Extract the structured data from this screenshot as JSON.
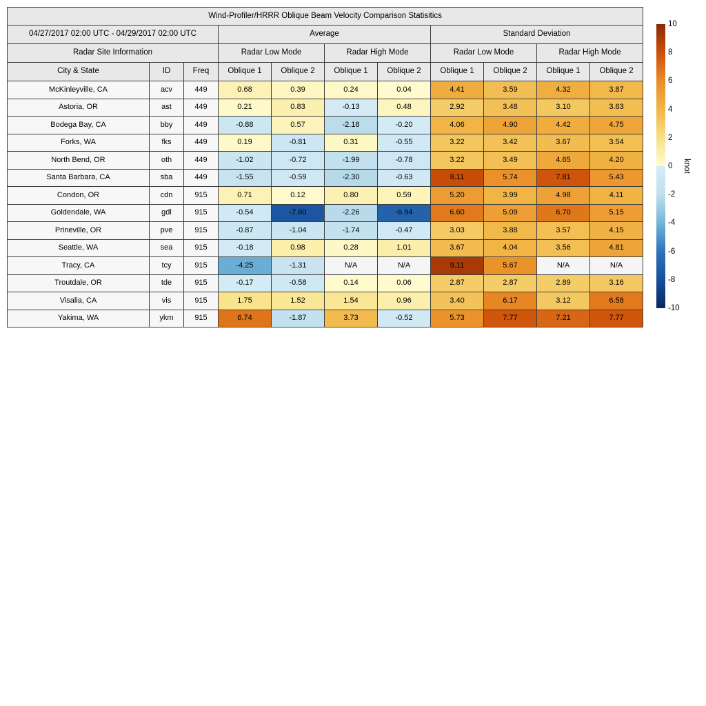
{
  "chart_data": {
    "type": "heatmap",
    "title": "Wind-Profiler/HRRR Oblique Beam Velocity Comparison Statisitics",
    "period": "04/27/2017 02:00 UTC - 04/29/2017 02:00 UTC",
    "site_info_header": "Radar Site Information",
    "group_headers": [
      "Average",
      "Standard Deviation"
    ],
    "mode_headers": [
      "Radar Low Mode",
      "Radar High Mode",
      "Radar Low Mode",
      "Radar High Mode"
    ],
    "columns": [
      "City & State",
      "ID",
      "Freq",
      "Oblique 1",
      "Oblique 2",
      "Oblique 1",
      "Oblique 2",
      "Oblique 1",
      "Oblique 2",
      "Oblique 1",
      "Oblique 2"
    ],
    "rows": [
      {
        "city": "McKinleyville, CA",
        "id": "acv",
        "freq": "449",
        "values": [
          "0.68",
          "0.39",
          "0.24",
          "0.04",
          "4.41",
          "3.59",
          "4.32",
          "3.87"
        ]
      },
      {
        "city": "Astoria, OR",
        "id": "ast",
        "freq": "449",
        "values": [
          "0.21",
          "0.83",
          "-0.13",
          "0.48",
          "2.92",
          "3.48",
          "3.10",
          "3.63"
        ]
      },
      {
        "city": "Bodega Bay, CA",
        "id": "bby",
        "freq": "449",
        "values": [
          "-0.88",
          "0.57",
          "-2.18",
          "-0.20",
          "4.06",
          "4.90",
          "4.42",
          "4.75"
        ]
      },
      {
        "city": "Forks, WA",
        "id": "fks",
        "freq": "449",
        "values": [
          "0.19",
          "-0.81",
          "0.31",
          "-0.55",
          "3.22",
          "3.42",
          "3.67",
          "3.54"
        ]
      },
      {
        "city": "North Bend, OR",
        "id": "oth",
        "freq": "449",
        "values": [
          "-1.02",
          "-0.72",
          "-1.99",
          "-0.78",
          "3.22",
          "3.49",
          "4.65",
          "4.20"
        ]
      },
      {
        "city": "Santa Barbara, CA",
        "id": "sba",
        "freq": "449",
        "values": [
          "-1.55",
          "-0.59",
          "-2.30",
          "-0.63",
          "8.11",
          "5.74",
          "7.81",
          "5.43"
        ]
      },
      {
        "city": "Condon, OR",
        "id": "cdn",
        "freq": "915",
        "values": [
          "0.71",
          "0.12",
          "0.80",
          "0.59",
          "5.20",
          "3.99",
          "4.98",
          "4.11"
        ]
      },
      {
        "city": "Goldendale, WA",
        "id": "gdl",
        "freq": "915",
        "values": [
          "-0.54",
          "-7.60",
          "-2.26",
          "-6.94",
          "6.60",
          "5.09",
          "6.70",
          "5.15"
        ]
      },
      {
        "city": "Prineville, OR",
        "id": "pve",
        "freq": "915",
        "values": [
          "-0.87",
          "-1.04",
          "-1.74",
          "-0.47",
          "3.03",
          "3.88",
          "3.57",
          "4.15"
        ]
      },
      {
        "city": "Seattle, WA",
        "id": "sea",
        "freq": "915",
        "values": [
          "-0.18",
          "0.98",
          "0.28",
          "1.01",
          "3.67",
          "4.04",
          "3.56",
          "4.81"
        ]
      },
      {
        "city": "Tracy, CA",
        "id": "tcy",
        "freq": "915",
        "values": [
          "-4.25",
          "-1.31",
          "N/A",
          "N/A",
          "9.11",
          "5.67",
          "N/A",
          "N/A"
        ]
      },
      {
        "city": "Troutdale, OR",
        "id": "tde",
        "freq": "915",
        "values": [
          "-0.17",
          "-0.58",
          "0.14",
          "0.06",
          "2.87",
          "2.87",
          "2.89",
          "3.16"
        ]
      },
      {
        "city": "Visalia, CA",
        "id": "vis",
        "freq": "915",
        "values": [
          "1.75",
          "1.52",
          "1.54",
          "0.96",
          "3.40",
          "6.17",
          "3.12",
          "6.58"
        ]
      },
      {
        "city": "Yakima, WA",
        "id": "ykm",
        "freq": "915",
        "values": [
          "6.74",
          "-1.87",
          "3.73",
          "-0.52",
          "5.73",
          "7.77",
          "7.21",
          "7.77"
        ]
      }
    ],
    "colorbar": {
      "label": "knot",
      "min": -10,
      "max": 10,
      "ticks": [
        "10",
        "8",
        "6",
        "4",
        "2",
        "0",
        "-2",
        "-4",
        "-6",
        "-8",
        "-10"
      ],
      "na_color": "#f5f5f5",
      "stops": [
        {
          "v": 10,
          "color": "#8a2a04"
        },
        {
          "v": 8,
          "color": "#cb4f08"
        },
        {
          "v": 6,
          "color": "#ea8c26"
        },
        {
          "v": 4,
          "color": "#f1b546"
        },
        {
          "v": 2,
          "color": "#f8e083"
        },
        {
          "v": 0.0001,
          "color": "#fffcd1"
        },
        {
          "v": -0.0001,
          "color": "#d5ecf6"
        },
        {
          "v": -2,
          "color": "#c2e0ed"
        },
        {
          "v": -4,
          "color": "#72b5d8"
        },
        {
          "v": -6,
          "color": "#2f74bc"
        },
        {
          "v": -8,
          "color": "#174f9b"
        },
        {
          "v": -10,
          "color": "#09285c"
        }
      ]
    }
  }
}
